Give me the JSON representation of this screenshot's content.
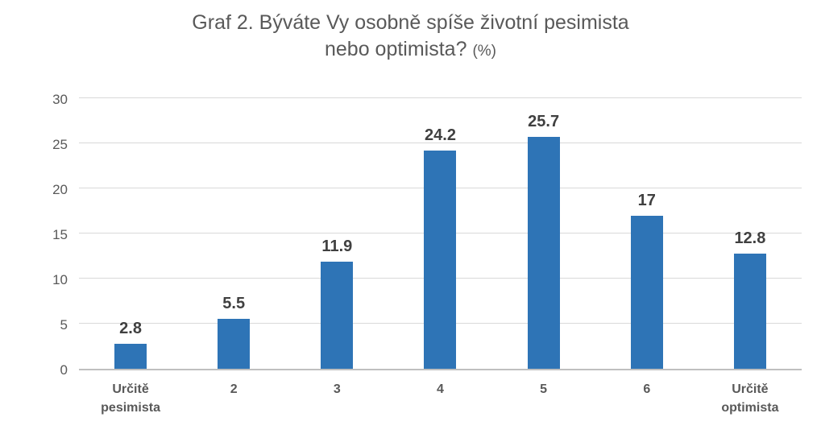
{
  "title": {
    "line1": "Graf 2. Býváte Vy osobně spíše životní pesimista",
    "line2_main": "nebo optimista?",
    "line2_suffix": "(%)"
  },
  "colors": {
    "bar": "#2E74B6",
    "title_text": "#595959",
    "data_label": "#404040",
    "axis_label": "#595959",
    "gridline": "#D9D9D9",
    "axis_line": "#BFBFBF",
    "bg": "#FFFFFF"
  },
  "chart_data": {
    "type": "bar",
    "title": "Graf 2. Býváte Vy osobně spíše životní pesimista nebo optimista? (%)",
    "categories": [
      "Určitě pesimista",
      "2",
      "3",
      "4",
      "5",
      "6",
      "Určitě optimista"
    ],
    "values": [
      2.8,
      5.5,
      11.9,
      24.2,
      25.7,
      17,
      12.8
    ],
    "data_labels": [
      "2.8",
      "5.5",
      "11.9",
      "24.2",
      "25.7",
      "17",
      "12.8"
    ],
    "xlabel": "",
    "ylabel": "",
    "ylim": [
      0,
      30
    ],
    "yticks": [
      0,
      5,
      10,
      15,
      20,
      25,
      30
    ],
    "grid": "horizontal",
    "legend": "none",
    "bar_color": "#2E74B6"
  }
}
